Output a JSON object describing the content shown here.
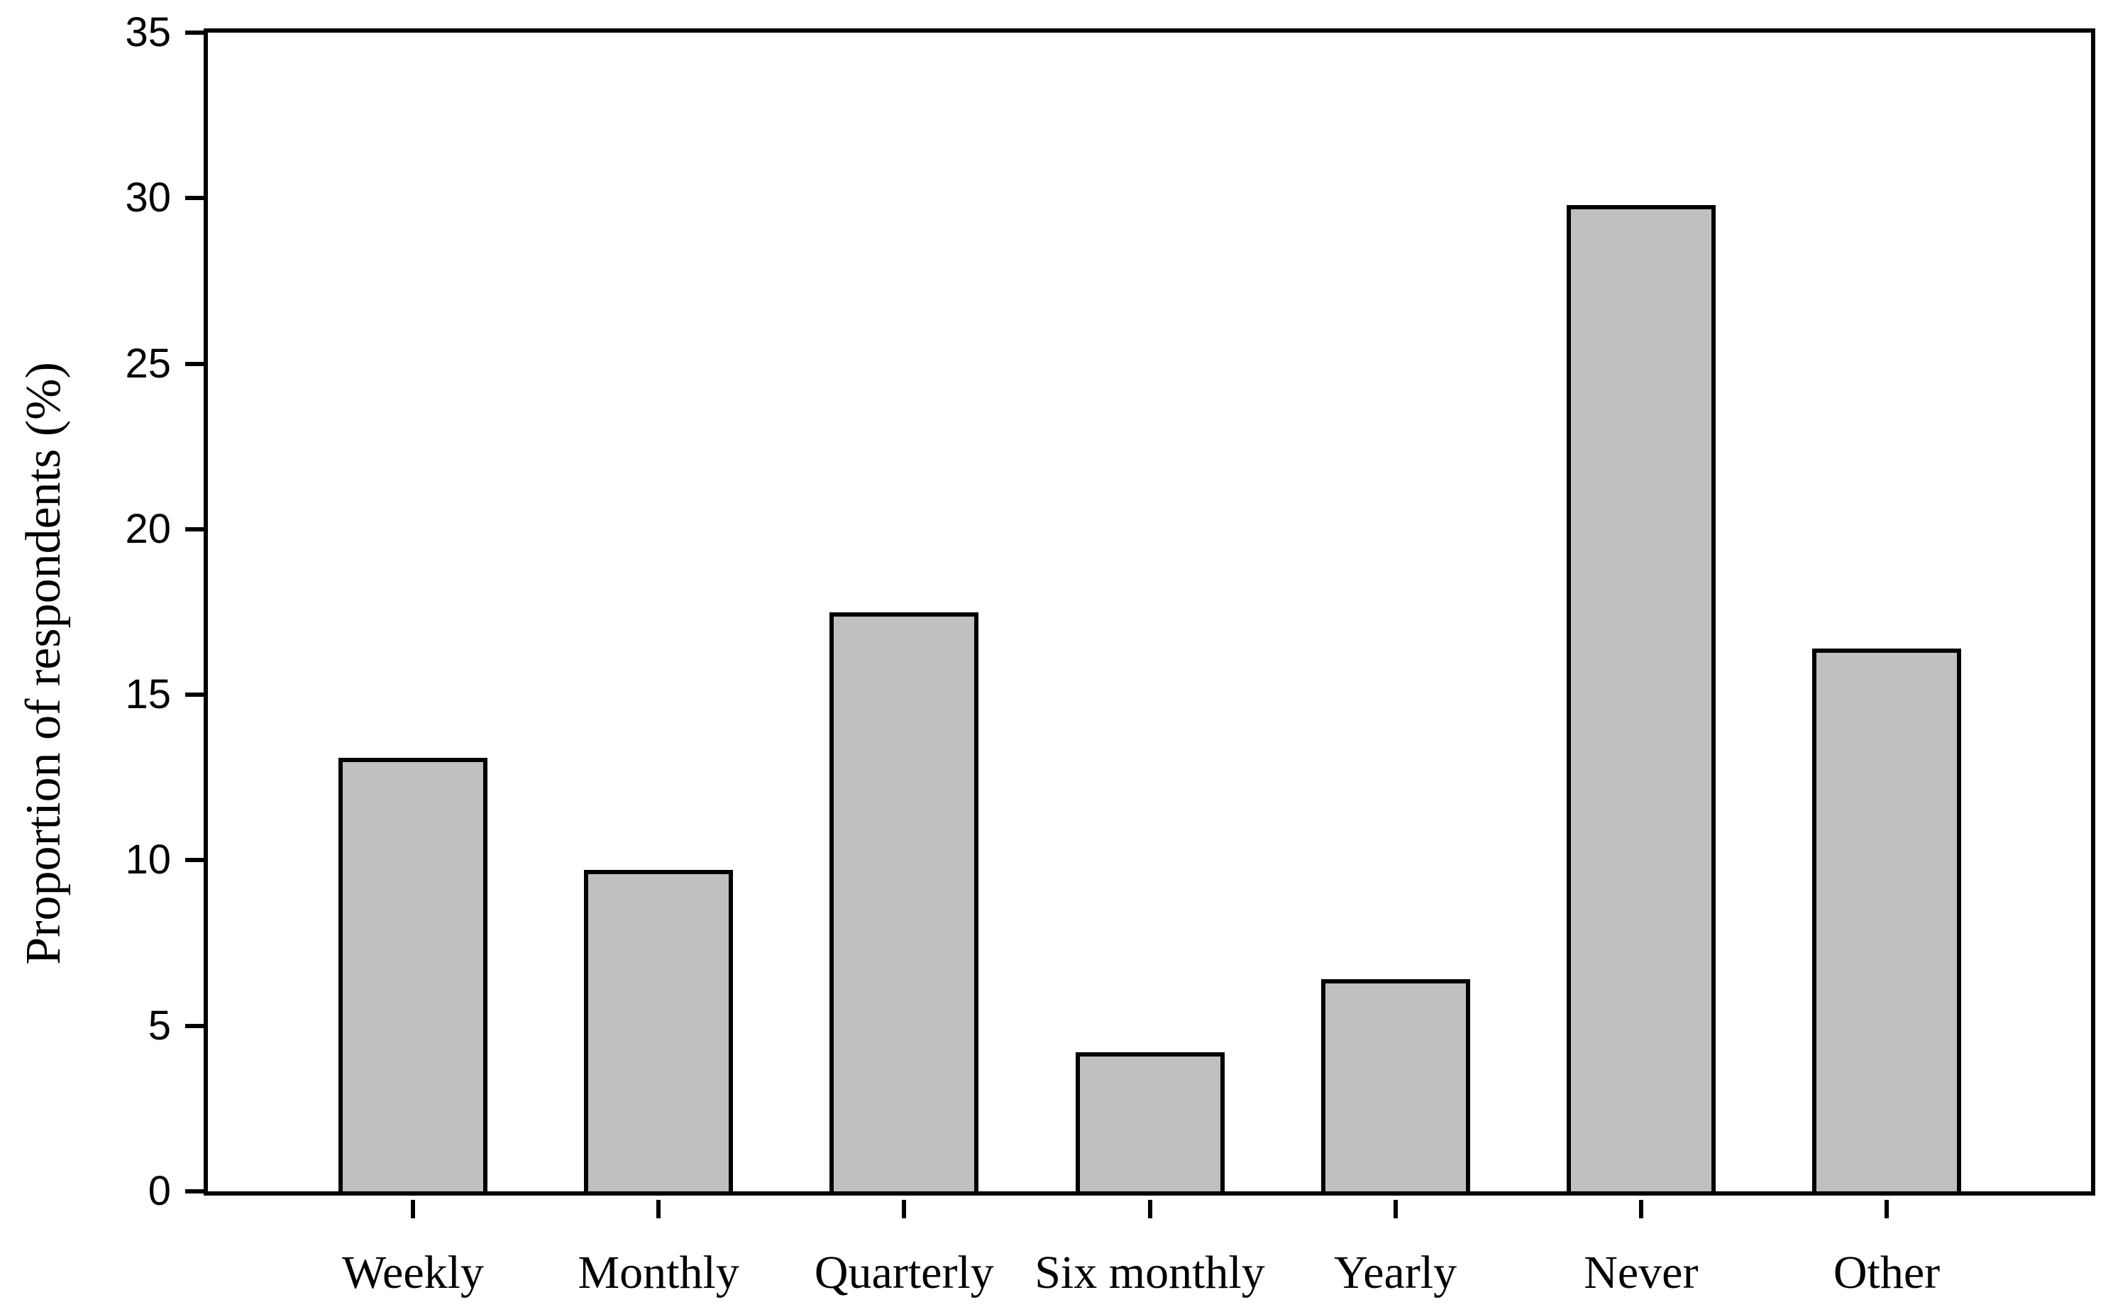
{
  "figure": {
    "background": "#ffffff",
    "frame_color": "#000000"
  },
  "chart_data": {
    "type": "bar",
    "categories": [
      "Weekly",
      "Monthly",
      "Quarterly",
      "Six monthly",
      "Yearly",
      "Never",
      "Other"
    ],
    "values": [
      13.1,
      9.7,
      17.5,
      4.2,
      6.4,
      29.8,
      16.4
    ],
    "title": "",
    "xlabel": "",
    "ylabel": "Proportion of respondents (%)",
    "ylim": [
      0,
      35
    ],
    "yticks": [
      0,
      5,
      10,
      15,
      20,
      25,
      30,
      35
    ],
    "grid": false,
    "legend": "none",
    "bar_fill": "#c0c0c0",
    "bar_stroke": "#000000"
  }
}
